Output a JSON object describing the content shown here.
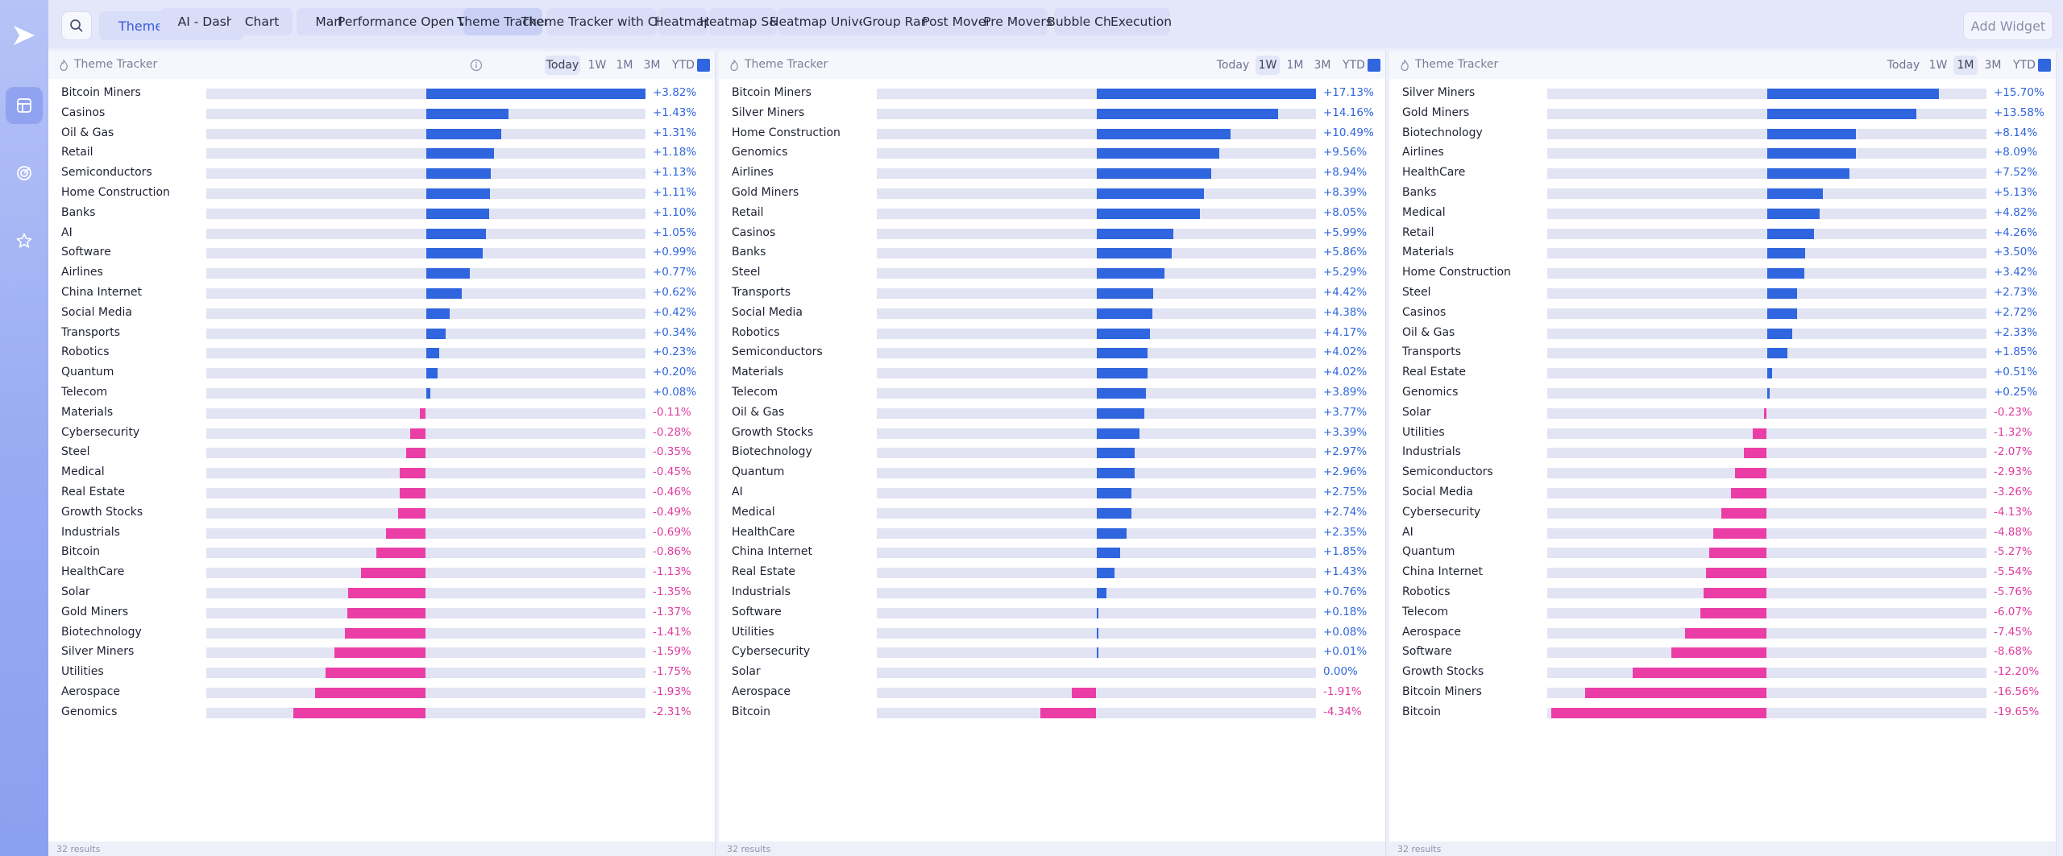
{
  "sidebar": {
    "items": [
      {
        "icon": "dashboard-icon",
        "active": true
      },
      {
        "icon": "target-icon",
        "active": false
      },
      {
        "icon": "star-icon",
        "active": false
      }
    ]
  },
  "header": {
    "workspace": "Theme Trac...",
    "tabs": [
      {
        "label": "AI - Dashboard",
        "active": false
      },
      {
        "label": "Chart",
        "active": false
      },
      {
        "label": "Market Monitor",
        "active": false
      },
      {
        "label": "Performance Open Vs Today",
        "active": false
      },
      {
        "label": "Theme Tracker",
        "active": true
      },
      {
        "label": "Theme Tracker with Chart",
        "active": false
      },
      {
        "label": "Heatmap",
        "active": false
      },
      {
        "label": "Heatmap S&P",
        "active": false
      },
      {
        "label": "Heatmap Universe",
        "active": false
      },
      {
        "label": "Group Ranks",
        "active": false
      },
      {
        "label": "Post Movers",
        "active": false
      },
      {
        "label": "Pre Movers",
        "active": false
      },
      {
        "label": "Bubble Charts",
        "active": false
      },
      {
        "label": "Execution",
        "active": false
      }
    ],
    "add_widget": "Add Widget"
  },
  "colors": {
    "positive": "#2f65de",
    "negative": "#ea3ea6",
    "track": "#e2e4f4"
  },
  "panels": [
    {
      "title": "Theme Tracker",
      "ranges": [
        "Today",
        "1W",
        "1M",
        "3M",
        "YTD"
      ],
      "active_range": "Today",
      "footer": "32 results",
      "scale_max": 3.82,
      "rows": [
        {
          "name": "Bitcoin Miners",
          "value": 3.82,
          "label": "+3.82%"
        },
        {
          "name": "Casinos",
          "value": 1.43,
          "label": "+1.43%"
        },
        {
          "name": "Oil & Gas",
          "value": 1.31,
          "label": "+1.31%"
        },
        {
          "name": "Retail",
          "value": 1.18,
          "label": "+1.18%"
        },
        {
          "name": "Semiconductors",
          "value": 1.13,
          "label": "+1.13%"
        },
        {
          "name": "Home Construction",
          "value": 1.11,
          "label": "+1.11%"
        },
        {
          "name": "Banks",
          "value": 1.1,
          "label": "+1.10%"
        },
        {
          "name": "AI",
          "value": 1.05,
          "label": "+1.05%"
        },
        {
          "name": "Software",
          "value": 0.99,
          "label": "+0.99%"
        },
        {
          "name": "Airlines",
          "value": 0.77,
          "label": "+0.77%"
        },
        {
          "name": "China Internet",
          "value": 0.62,
          "label": "+0.62%"
        },
        {
          "name": "Social Media",
          "value": 0.42,
          "label": "+0.42%"
        },
        {
          "name": "Transports",
          "value": 0.34,
          "label": "+0.34%"
        },
        {
          "name": "Robotics",
          "value": 0.23,
          "label": "+0.23%"
        },
        {
          "name": "Quantum",
          "value": 0.2,
          "label": "+0.20%"
        },
        {
          "name": "Telecom",
          "value": 0.08,
          "label": "+0.08%"
        },
        {
          "name": "Materials",
          "value": -0.11,
          "label": "-0.11%"
        },
        {
          "name": "Cybersecurity",
          "value": -0.28,
          "label": "-0.28%"
        },
        {
          "name": "Steel",
          "value": -0.35,
          "label": "-0.35%"
        },
        {
          "name": "Medical",
          "value": -0.45,
          "label": "-0.45%"
        },
        {
          "name": "Real Estate",
          "value": -0.46,
          "label": "-0.46%"
        },
        {
          "name": "Growth Stocks",
          "value": -0.49,
          "label": "-0.49%"
        },
        {
          "name": "Industrials",
          "value": -0.69,
          "label": "-0.69%"
        },
        {
          "name": "Bitcoin",
          "value": -0.86,
          "label": "-0.86%"
        },
        {
          "name": "HealthCare",
          "value": -1.13,
          "label": "-1.13%"
        },
        {
          "name": "Solar",
          "value": -1.35,
          "label": "-1.35%"
        },
        {
          "name": "Gold Miners",
          "value": -1.37,
          "label": "-1.37%"
        },
        {
          "name": "Biotechnology",
          "value": -1.41,
          "label": "-1.41%"
        },
        {
          "name": "Silver Miners",
          "value": -1.59,
          "label": "-1.59%"
        },
        {
          "name": "Utilities",
          "value": -1.75,
          "label": "-1.75%"
        },
        {
          "name": "Aerospace",
          "value": -1.93,
          "label": "-1.93%"
        },
        {
          "name": "Genomics",
          "value": -2.31,
          "label": "-2.31%"
        }
      ]
    },
    {
      "title": "Theme Tracker",
      "ranges": [
        "Today",
        "1W",
        "1M",
        "3M",
        "YTD"
      ],
      "active_range": "1W",
      "footer": "32 results",
      "scale_max": 17.13,
      "rows": [
        {
          "name": "Bitcoin Miners",
          "value": 17.13,
          "label": "+17.13%"
        },
        {
          "name": "Silver Miners",
          "value": 14.16,
          "label": "+14.16%"
        },
        {
          "name": "Home Construction",
          "value": 10.49,
          "label": "+10.49%"
        },
        {
          "name": "Genomics",
          "value": 9.56,
          "label": "+9.56%"
        },
        {
          "name": "Airlines",
          "value": 8.94,
          "label": "+8.94%"
        },
        {
          "name": "Gold Miners",
          "value": 8.39,
          "label": "+8.39%"
        },
        {
          "name": "Retail",
          "value": 8.05,
          "label": "+8.05%"
        },
        {
          "name": "Casinos",
          "value": 5.99,
          "label": "+5.99%"
        },
        {
          "name": "Banks",
          "value": 5.86,
          "label": "+5.86%"
        },
        {
          "name": "Steel",
          "value": 5.29,
          "label": "+5.29%"
        },
        {
          "name": "Transports",
          "value": 4.42,
          "label": "+4.42%"
        },
        {
          "name": "Social Media",
          "value": 4.38,
          "label": "+4.38%"
        },
        {
          "name": "Robotics",
          "value": 4.17,
          "label": "+4.17%"
        },
        {
          "name": "Semiconductors",
          "value": 4.02,
          "label": "+4.02%"
        },
        {
          "name": "Materials",
          "value": 4.02,
          "label": "+4.02%"
        },
        {
          "name": "Telecom",
          "value": 3.89,
          "label": "+3.89%"
        },
        {
          "name": "Oil & Gas",
          "value": 3.77,
          "label": "+3.77%"
        },
        {
          "name": "Growth Stocks",
          "value": 3.39,
          "label": "+3.39%"
        },
        {
          "name": "Biotechnology",
          "value": 2.97,
          "label": "+2.97%"
        },
        {
          "name": "Quantum",
          "value": 2.96,
          "label": "+2.96%"
        },
        {
          "name": "AI",
          "value": 2.75,
          "label": "+2.75%"
        },
        {
          "name": "Medical",
          "value": 2.74,
          "label": "+2.74%"
        },
        {
          "name": "HealthCare",
          "value": 2.35,
          "label": "+2.35%"
        },
        {
          "name": "China Internet",
          "value": 1.85,
          "label": "+1.85%"
        },
        {
          "name": "Real Estate",
          "value": 1.43,
          "label": "+1.43%"
        },
        {
          "name": "Industrials",
          "value": 0.76,
          "label": "+0.76%"
        },
        {
          "name": "Software",
          "value": 0.18,
          "label": "+0.18%"
        },
        {
          "name": "Utilities",
          "value": 0.08,
          "label": "+0.08%"
        },
        {
          "name": "Cybersecurity",
          "value": 0.01,
          "label": "+0.01%"
        },
        {
          "name": "Solar",
          "value": 0.0,
          "label": "0.00%"
        },
        {
          "name": "Aerospace",
          "value": -1.91,
          "label": "-1.91%"
        },
        {
          "name": "Bitcoin",
          "value": -4.34,
          "label": "-4.34%"
        }
      ]
    },
    {
      "title": "Theme Tracker",
      "ranges": [
        "Today",
        "1W",
        "1M",
        "3M",
        "YTD"
      ],
      "active_range": "1M",
      "footer": "32 results",
      "scale_max": 20.0,
      "rows": [
        {
          "name": "Silver Miners",
          "value": 15.7,
          "label": "+15.70%"
        },
        {
          "name": "Gold Miners",
          "value": 13.58,
          "label": "+13.58%"
        },
        {
          "name": "Biotechnology",
          "value": 8.14,
          "label": "+8.14%"
        },
        {
          "name": "Airlines",
          "value": 8.09,
          "label": "+8.09%"
        },
        {
          "name": "HealthCare",
          "value": 7.52,
          "label": "+7.52%"
        },
        {
          "name": "Banks",
          "value": 5.13,
          "label": "+5.13%"
        },
        {
          "name": "Medical",
          "value": 4.82,
          "label": "+4.82%"
        },
        {
          "name": "Retail",
          "value": 4.26,
          "label": "+4.26%"
        },
        {
          "name": "Materials",
          "value": 3.5,
          "label": "+3.50%"
        },
        {
          "name": "Home Construction",
          "value": 3.42,
          "label": "+3.42%"
        },
        {
          "name": "Steel",
          "value": 2.73,
          "label": "+2.73%"
        },
        {
          "name": "Casinos",
          "value": 2.72,
          "label": "+2.72%"
        },
        {
          "name": "Oil & Gas",
          "value": 2.33,
          "label": "+2.33%"
        },
        {
          "name": "Transports",
          "value": 1.85,
          "label": "+1.85%"
        },
        {
          "name": "Real Estate",
          "value": 0.51,
          "label": "+0.51%"
        },
        {
          "name": "Genomics",
          "value": 0.25,
          "label": "+0.25%"
        },
        {
          "name": "Solar",
          "value": -0.23,
          "label": "-0.23%"
        },
        {
          "name": "Utilities",
          "value": -1.32,
          "label": "-1.32%"
        },
        {
          "name": "Industrials",
          "value": -2.07,
          "label": "-2.07%"
        },
        {
          "name": "Semiconductors",
          "value": -2.93,
          "label": "-2.93%"
        },
        {
          "name": "Social Media",
          "value": -3.26,
          "label": "-3.26%"
        },
        {
          "name": "Cybersecurity",
          "value": -4.13,
          "label": "-4.13%"
        },
        {
          "name": "AI",
          "value": -4.88,
          "label": "-4.88%"
        },
        {
          "name": "Quantum",
          "value": -5.27,
          "label": "-5.27%"
        },
        {
          "name": "China Internet",
          "value": -5.54,
          "label": "-5.54%"
        },
        {
          "name": "Robotics",
          "value": -5.76,
          "label": "-5.76%"
        },
        {
          "name": "Telecom",
          "value": -6.07,
          "label": "-6.07%"
        },
        {
          "name": "Aerospace",
          "value": -7.45,
          "label": "-7.45%"
        },
        {
          "name": "Software",
          "value": -8.68,
          "label": "-8.68%"
        },
        {
          "name": "Growth Stocks",
          "value": -12.2,
          "label": "-12.20%"
        },
        {
          "name": "Bitcoin Miners",
          "value": -16.56,
          "label": "-16.56%"
        },
        {
          "name": "Bitcoin",
          "value": -19.65,
          "label": "-19.65%"
        }
      ]
    }
  ]
}
